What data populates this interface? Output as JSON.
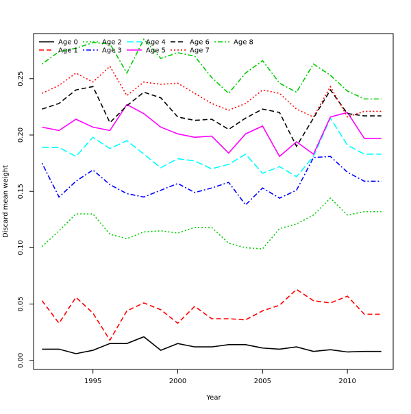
{
  "chart_data": {
    "type": "line",
    "title": "",
    "xlabel": "Year",
    "ylabel": "Discard mean weight",
    "xlim": [
      1991.5,
      2012.7
    ],
    "ylim": [
      -0.008,
      0.29
    ],
    "x_ticks": [
      1995,
      2000,
      2005,
      2010
    ],
    "y_ticks": [
      0.0,
      0.05,
      0.1,
      0.15,
      0.2,
      0.25
    ],
    "y_tick_labels": [
      "0.00",
      "0.05",
      "0.10",
      "0.15",
      "0.20",
      "0.25"
    ],
    "grid": false,
    "legend_position": "top-left",
    "x": [
      1992,
      1993,
      1994,
      1995,
      1996,
      1997,
      1998,
      1999,
      2000,
      2001,
      2002,
      2003,
      2004,
      2005,
      2006,
      2007,
      2008,
      2009,
      2010,
      2011,
      2012
    ],
    "series": [
      {
        "name": "Age 0",
        "color": "#000000",
        "dash": "solid",
        "values": [
          0.01,
          0.01,
          0.006,
          0.009,
          0.015,
          0.015,
          0.021,
          0.009,
          0.015,
          0.012,
          0.012,
          0.014,
          0.014,
          0.011,
          0.01,
          0.012,
          0.008,
          0.0095,
          0.0075,
          0.008,
          0.008
        ]
      },
      {
        "name": "Age 1",
        "color": "#ff0000",
        "dash": "dashed",
        "values": [
          0.053,
          0.033,
          0.056,
          0.042,
          0.018,
          0.044,
          0.051,
          0.045,
          0.033,
          0.048,
          0.037,
          0.037,
          0.036,
          0.044,
          0.049,
          0.063,
          0.053,
          0.051,
          0.057,
          0.041,
          0.041
        ]
      },
      {
        "name": "Age 2",
        "color": "#00cd00",
        "dash": "dotted",
        "values": [
          0.101,
          0.115,
          0.13,
          0.13,
          0.112,
          0.108,
          0.114,
          0.115,
          0.113,
          0.118,
          0.118,
          0.104,
          0.1,
          0.099,
          0.117,
          0.121,
          0.129,
          0.144,
          0.129,
          0.132,
          0.132
        ]
      },
      {
        "name": "Age 3",
        "color": "#0000ff",
        "dash": "dotdash",
        "values": [
          0.175,
          0.145,
          0.159,
          0.169,
          0.156,
          0.148,
          0.145,
          0.151,
          0.157,
          0.149,
          0.153,
          0.158,
          0.138,
          0.153,
          0.144,
          0.151,
          0.18,
          0.181,
          0.167,
          0.159,
          0.159
        ]
      },
      {
        "name": "Age 4",
        "color": "#00ffff",
        "dash": "longdash",
        "values": [
          0.189,
          0.189,
          0.181,
          0.198,
          0.188,
          0.195,
          0.183,
          0.171,
          0.179,
          0.177,
          0.17,
          0.174,
          0.183,
          0.166,
          0.172,
          0.163,
          0.181,
          0.215,
          0.191,
          0.183,
          0.183
        ]
      },
      {
        "name": "Age 5",
        "color": "#ff00ff",
        "dash": "solid",
        "values": [
          0.207,
          0.204,
          0.214,
          0.207,
          0.204,
          0.227,
          0.219,
          0.207,
          0.201,
          0.198,
          0.199,
          0.184,
          0.201,
          0.208,
          0.181,
          0.194,
          0.183,
          0.216,
          0.22,
          0.197,
          0.197
        ]
      },
      {
        "name": "Age 6",
        "color": "#000000",
        "dash": "dashed",
        "values": [
          0.223,
          0.228,
          0.24,
          0.243,
          0.211,
          0.226,
          0.238,
          0.233,
          0.216,
          0.213,
          0.214,
          0.205,
          0.215,
          0.223,
          0.22,
          0.19,
          0.215,
          0.24,
          0.219,
          0.217,
          0.217
        ]
      },
      {
        "name": "Age 7",
        "color": "#ff0000",
        "dash": "dotted",
        "values": [
          0.237,
          0.244,
          0.255,
          0.247,
          0.261,
          0.235,
          0.247,
          0.245,
          0.246,
          0.237,
          0.228,
          0.222,
          0.228,
          0.24,
          0.237,
          0.223,
          0.216,
          0.243,
          0.216,
          0.221,
          0.221
        ]
      },
      {
        "name": "Age 8",
        "color": "#00cd00",
        "dash": "dotdash",
        "values": [
          0.263,
          0.274,
          0.277,
          0.282,
          0.281,
          0.255,
          0.285,
          0.268,
          0.273,
          0.27,
          0.251,
          0.237,
          0.255,
          0.266,
          0.246,
          0.238,
          0.263,
          0.253,
          0.239,
          0.232,
          0.232
        ]
      }
    ]
  }
}
